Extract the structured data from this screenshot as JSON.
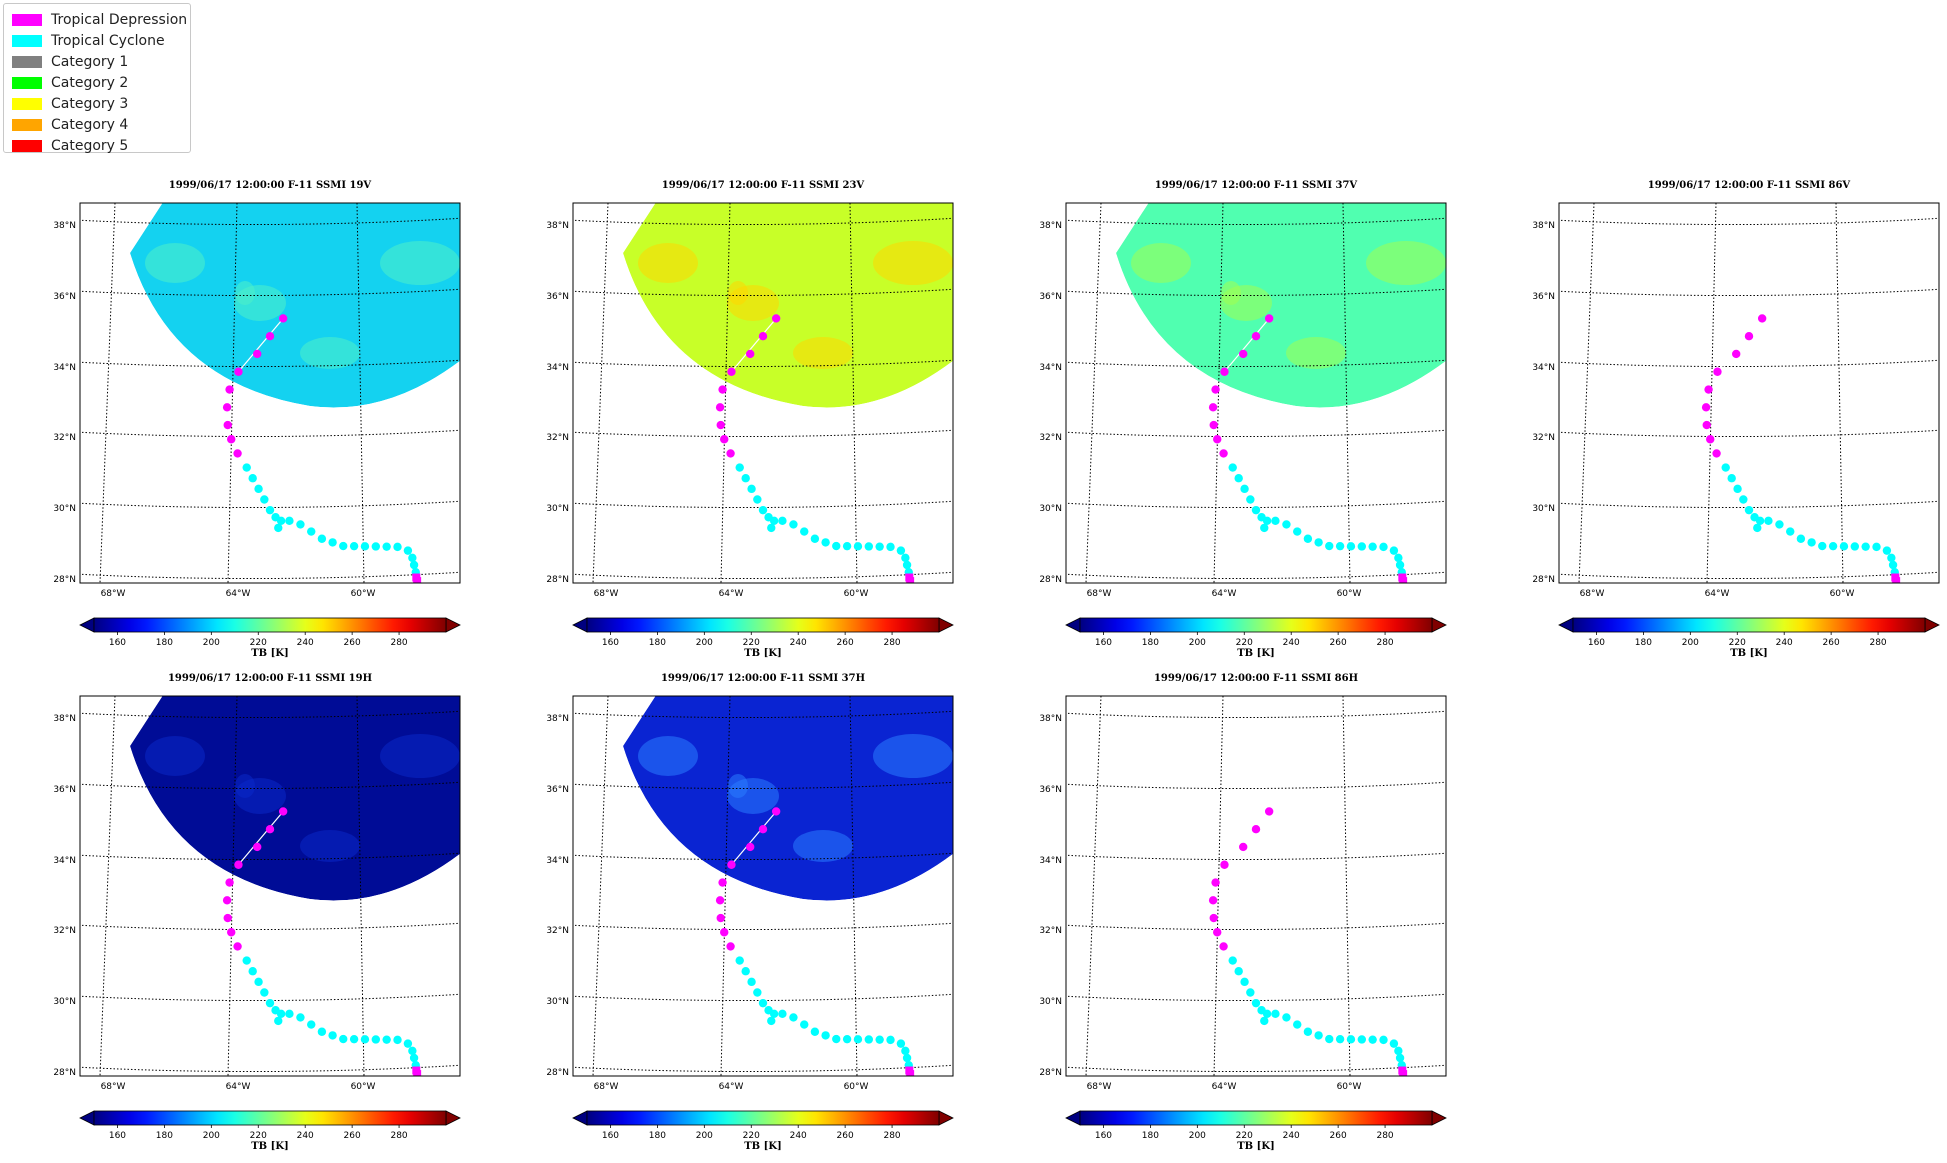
{
  "legend": {
    "items": [
      {
        "label": "Tropical Depression",
        "color": "#ff00ff"
      },
      {
        "label": "Tropical Cyclone",
        "color": "#00ffff"
      },
      {
        "label": "Category 1",
        "color": "#808080"
      },
      {
        "label": "Category 2",
        "color": "#00ff00"
      },
      {
        "label": "Category 3",
        "color": "#ffff00"
      },
      {
        "label": "Category 4",
        "color": "#ffa500"
      },
      {
        "label": "Category 5",
        "color": "#ff0000"
      }
    ]
  },
  "chart_data": [
    {
      "type": "map",
      "title": "1999/06/17 12:00:00  F-11 SSMI 19V",
      "channel": "19V",
      "swath_fill": "#14d2f0",
      "swath_alt": "#4ef0c8",
      "has_swath": true,
      "y_ticks": [
        "38°N",
        "36°N",
        "34°N",
        "32°N",
        "30°N",
        "28°N"
      ],
      "x_ticks": [
        "68°W",
        "64°W",
        "60°W"
      ],
      "colorbar": {
        "label": "TB [K]",
        "ticks": [
          "160",
          "180",
          "200",
          "220",
          "240",
          "260",
          "280"
        ],
        "range": [
          150,
          300
        ]
      }
    },
    {
      "type": "map",
      "title": "1999/06/17 12:00:00  F-11 SSMI 23V",
      "channel": "23V",
      "swath_fill": "#c8ff28",
      "swath_alt": "#ffd700",
      "has_swath": true,
      "y_ticks": [
        "38°N",
        "36°N",
        "34°N",
        "32°N",
        "30°N",
        "28°N"
      ],
      "x_ticks": [
        "68°W",
        "64°W",
        "60°W"
      ],
      "colorbar": {
        "label": "TB [K]",
        "ticks": [
          "160",
          "180",
          "200",
          "220",
          "240",
          "260",
          "280"
        ],
        "range": [
          150,
          300
        ]
      }
    },
    {
      "type": "map",
      "title": "1999/06/17 12:00:00  F-11 SSMI 37V",
      "channel": "37V",
      "swath_fill": "#50ffb0",
      "swath_alt": "#a0ff50",
      "has_swath": true,
      "y_ticks": [
        "38°N",
        "36°N",
        "34°N",
        "32°N",
        "30°N",
        "28°N"
      ],
      "x_ticks": [
        "68°W",
        "64°W",
        "60°W"
      ],
      "colorbar": {
        "label": "TB [K]",
        "ticks": [
          "160",
          "180",
          "200",
          "220",
          "240",
          "260",
          "280"
        ],
        "range": [
          150,
          300
        ]
      }
    },
    {
      "type": "map",
      "title": "1999/06/17 12:00:00  F-11 SSMI 86V",
      "channel": "86V",
      "has_swath": false,
      "y_ticks": [
        "38°N",
        "36°N",
        "34°N",
        "32°N",
        "30°N",
        "28°N"
      ],
      "x_ticks": [
        "68°W",
        "64°W",
        "60°W"
      ],
      "colorbar": {
        "label": "TB [K]",
        "ticks": [
          "160",
          "180",
          "200",
          "220",
          "240",
          "260",
          "280"
        ],
        "range": [
          150,
          300
        ]
      }
    },
    {
      "type": "map",
      "title": "1999/06/17 12:00:00  F-11 SSMI 19H",
      "channel": "19H",
      "swath_fill": "#000c96",
      "swath_alt": "#0a28c8",
      "has_swath": true,
      "y_ticks": [
        "38°N",
        "36°N",
        "34°N",
        "32°N",
        "30°N",
        "28°N"
      ],
      "x_ticks": [
        "68°W",
        "64°W",
        "60°W"
      ],
      "colorbar": {
        "label": "TB [K]",
        "ticks": [
          "160",
          "180",
          "200",
          "220",
          "240",
          "260",
          "280"
        ],
        "range": [
          150,
          300
        ]
      }
    },
    {
      "type": "map",
      "title": "1999/06/17 12:00:00  F-11 SSMI 37H",
      "channel": "37H",
      "swath_fill": "#0a24d2",
      "swath_alt": "#2a7cff",
      "has_swath": true,
      "y_ticks": [
        "38°N",
        "36°N",
        "34°N",
        "32°N",
        "30°N",
        "28°N"
      ],
      "x_ticks": [
        "68°W",
        "64°W",
        "60°W"
      ],
      "colorbar": {
        "label": "TB [K]",
        "ticks": [
          "160",
          "180",
          "200",
          "220",
          "240",
          "260",
          "280"
        ],
        "range": [
          150,
          300
        ]
      }
    },
    {
      "type": "map",
      "title": "1999/06/17 12:00:00  F-11 SSMI 86H",
      "channel": "86H",
      "has_swath": false,
      "y_ticks": [
        "38°N",
        "36°N",
        "34°N",
        "32°N",
        "30°N",
        "28°N"
      ],
      "x_ticks": [
        "68°W",
        "64°W",
        "60°W"
      ],
      "colorbar": {
        "label": "TB [K]",
        "ticks": [
          "160",
          "180",
          "200",
          "220",
          "240",
          "260",
          "280"
        ],
        "range": [
          150,
          300
        ]
      }
    }
  ],
  "track": {
    "tropical_depression_color": "#ff00ff",
    "tropical_cyclone_color": "#00ffff",
    "depression_points": [
      [
        -61.6,
        35.3
      ],
      [
        -62.0,
        34.8
      ],
      [
        -62.4,
        34.3
      ],
      [
        -63.0,
        33.8
      ],
      [
        -63.3,
        33.3
      ],
      [
        -63.4,
        32.8
      ],
      [
        -63.4,
        32.3
      ],
      [
        -63.3,
        31.9
      ],
      [
        -63.1,
        31.5
      ]
    ],
    "cyclone_points": [
      [
        -62.8,
        31.1
      ],
      [
        -62.6,
        30.8
      ],
      [
        -62.4,
        30.5
      ],
      [
        -62.2,
        30.2
      ],
      [
        -62.0,
        29.9
      ],
      [
        -61.8,
        29.7
      ],
      [
        -61.6,
        29.6
      ],
      [
        -61.7,
        29.4
      ],
      [
        -61.3,
        29.6
      ],
      [
        -60.9,
        29.5
      ],
      [
        -60.5,
        29.3
      ],
      [
        -60.1,
        29.1
      ],
      [
        -59.7,
        29.0
      ],
      [
        -59.3,
        28.9
      ],
      [
        -58.9,
        28.9
      ],
      [
        -58.5,
        28.9
      ],
      [
        -58.1,
        28.9
      ],
      [
        -57.7,
        28.9
      ],
      [
        -57.3,
        28.9
      ],
      [
        -56.9,
        28.8
      ],
      [
        -56.7,
        28.6
      ],
      [
        -56.6,
        28.4
      ],
      [
        -56.5,
        28.2
      ]
    ],
    "end_points": [
      [
        -56.45,
        28.05
      ],
      [
        -56.4,
        27.95
      ]
    ]
  }
}
